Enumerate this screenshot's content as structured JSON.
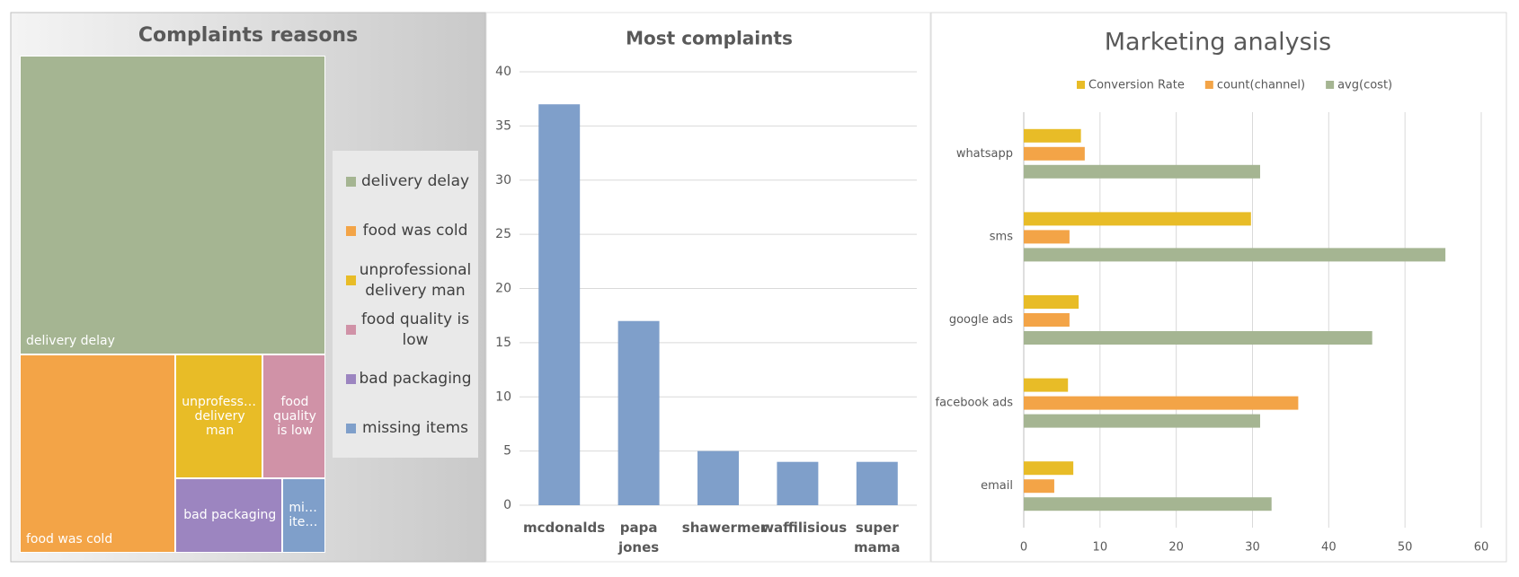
{
  "chart_data": [
    {
      "type": "treemap",
      "title": "Complaints reasons",
      "categories": [
        "delivery delay",
        "food was cold",
        "unprofessional delivery man",
        "food quality is low",
        "bad packaging",
        "missing items"
      ],
      "values": [
        40,
        13.5,
        4.7,
        3.4,
        3.5,
        1.4
      ],
      "colors": [
        "#a5b592",
        "#f3a447",
        "#e8bc27",
        "#d092a7",
        "#9c85c0",
        "#7f9fca"
      ],
      "legend": "right"
    },
    {
      "type": "bar",
      "title": "Most complaints",
      "categories": [
        "mcdonalds",
        "papa jones",
        "shawermer",
        "waffilisious",
        "super mama"
      ],
      "values": [
        37,
        17,
        5,
        4,
        4
      ],
      "color": "#7f9fca",
      "ylim": [
        0,
        40
      ],
      "yticks": [
        0,
        5,
        10,
        15,
        20,
        25,
        30,
        35,
        40
      ],
      "grid": true
    },
    {
      "type": "hbar",
      "title": "Marketing analysis",
      "categories": [
        "email",
        "facebook ads",
        "google ads",
        "sms",
        "whatsapp"
      ],
      "series": [
        {
          "name": "Conversion Rate",
          "color": "#e8bc27",
          "values": [
            6.5,
            5.8,
            7.2,
            29.8,
            7.5
          ]
        },
        {
          "name": "count(channel)",
          "color": "#f3a447",
          "values": [
            4,
            36,
            6,
            6,
            8
          ]
        },
        {
          "name": "avg(cost)",
          "color": "#a5b592",
          "values": [
            32.5,
            31,
            45.7,
            55.3,
            31
          ]
        }
      ],
      "xlim": [
        0,
        60
      ],
      "xticks": [
        0,
        10,
        20,
        30,
        40,
        50,
        60
      ],
      "grid": true,
      "legend": "top"
    }
  ]
}
